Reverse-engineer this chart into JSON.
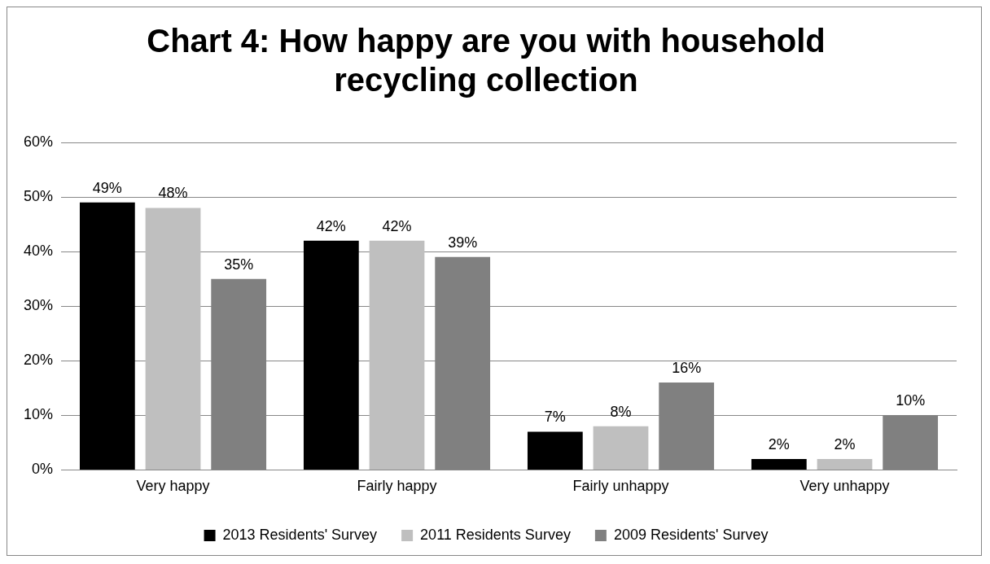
{
  "chart_data": {
    "type": "bar",
    "title": "Chart 4: How happy are you with household recycling collection",
    "categories": [
      "Very happy",
      "Fairly happy",
      "Fairly unhappy",
      "Very unhappy"
    ],
    "series": [
      {
        "name": "2013 Residents' Survey",
        "color": "#000000",
        "values": [
          49,
          42,
          7,
          2
        ],
        "value_labels": [
          "49%",
          "42%",
          "7%",
          "2%"
        ]
      },
      {
        "name": "2011 Residents Survey",
        "color": "#bfbfbf",
        "values": [
          48,
          42,
          8,
          2
        ],
        "value_labels": [
          "48%",
          "42%",
          "8%",
          "2%"
        ]
      },
      {
        "name": "2009 Residents' Survey",
        "color": "#808080",
        "values": [
          35,
          39,
          16,
          10
        ],
        "value_labels": [
          "35%",
          "39%",
          "16%",
          "10%"
        ]
      }
    ],
    "ylim": [
      0,
      60
    ],
    "yticks": [
      {
        "value": 0,
        "label": "0%"
      },
      {
        "value": 10,
        "label": "10%"
      },
      {
        "value": 20,
        "label": "20%"
      },
      {
        "value": 30,
        "label": "30%"
      },
      {
        "value": 40,
        "label": "40%"
      },
      {
        "value": 50,
        "label": "50%"
      },
      {
        "value": 60,
        "label": "60%"
      }
    ],
    "grid": "y",
    "legend": "bottom"
  }
}
